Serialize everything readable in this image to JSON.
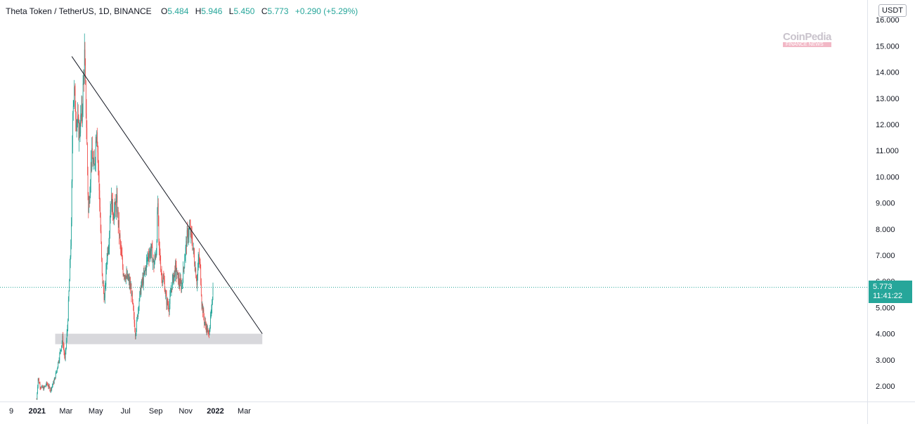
{
  "header": {
    "symbol": "Theta Token / TetherUS, 1D, BINANCE",
    "o_label": "O",
    "o_value": "5.484",
    "h_label": "H",
    "h_value": "5.946",
    "l_label": "L",
    "l_value": "5.450",
    "c_label": "C",
    "c_value": "5.773",
    "change": "+0.290 (+5.29%)"
  },
  "unit_badge": "USDT",
  "price_tag": {
    "price": "5.773",
    "countdown": "11:41:22"
  },
  "watermark": {
    "brand": "CoinPedia",
    "tagline": "FINANCE NEWS"
  },
  "colors": {
    "up": "#26a69a",
    "down": "#ef5350",
    "zone": "#d8d8dc",
    "trendline": "#131722",
    "last_price": "#26a69a"
  },
  "chart_data": {
    "type": "candlestick",
    "title": "Theta Token / TetherUS, 1D, BINANCE",
    "y_ticks": [
      "2.000",
      "3.000",
      "4.000",
      "5.000",
      "6.000",
      "7.000",
      "8.000",
      "9.000",
      "10.000",
      "11.000",
      "12.000",
      "13.000",
      "14.000",
      "15.000",
      "16.000"
    ],
    "ylim": [
      1.4,
      16.3
    ],
    "x_ticks": [
      {
        "label": "9",
        "date": "2020-11-09",
        "bold": false
      },
      {
        "label": "2021",
        "date": "2021-01-01",
        "bold": true
      },
      {
        "label": "Mar",
        "date": "2021-03-01",
        "bold": false
      },
      {
        "label": "May",
        "date": "2021-05-01",
        "bold": false
      },
      {
        "label": "Jul",
        "date": "2021-07-01",
        "bold": false
      },
      {
        "label": "Sep",
        "date": "2021-09-01",
        "bold": false
      },
      {
        "label": "Nov",
        "date": "2021-11-01",
        "bold": false
      },
      {
        "label": "2022",
        "date": "2022-01-01",
        "bold": true
      },
      {
        "label": "Mar",
        "date": "2022-03-01",
        "bold": false
      }
    ],
    "last_price": 5.773,
    "trendline": {
      "start": [
        "2021-03-13",
        14.6
      ],
      "end": [
        "2022-04-07",
        4.0
      ]
    },
    "support_zone": {
      "start": "2021-02-07",
      "end": "2022-04-07",
      "low": 3.6,
      "high": 4.0
    },
    "price_path": [
      [
        "2020-12-31",
        1.5
      ],
      [
        "2021-01-03",
        2.3
      ],
      [
        "2021-01-07",
        2.0
      ],
      [
        "2021-01-14",
        1.9
      ],
      [
        "2021-01-21",
        2.1
      ],
      [
        "2021-01-28",
        1.85
      ],
      [
        "2021-02-05",
        2.2
      ],
      [
        "2021-02-10",
        2.6
      ],
      [
        "2021-02-17",
        3.3
      ],
      [
        "2021-02-22",
        3.8
      ],
      [
        "2021-02-27",
        3.0
      ],
      [
        "2021-03-04",
        4.2
      ],
      [
        "2021-03-08",
        6.0
      ],
      [
        "2021-03-12",
        8.0
      ],
      [
        "2021-03-15",
        12.8
      ],
      [
        "2021-03-18",
        13.2
      ],
      [
        "2021-03-22",
        12.3
      ],
      [
        "2021-03-28",
        11.7
      ],
      [
        "2021-04-03",
        12.5
      ],
      [
        "2021-04-08",
        14.6
      ],
      [
        "2021-04-12",
        12.0
      ],
      [
        "2021-04-16",
        8.6
      ],
      [
        "2021-04-22",
        10.8
      ],
      [
        "2021-04-28",
        10.3
      ],
      [
        "2021-05-03",
        12.0
      ],
      [
        "2021-05-07",
        10.0
      ],
      [
        "2021-05-10",
        8.5
      ],
      [
        "2021-05-14",
        6.2
      ],
      [
        "2021-05-19",
        5.3
      ],
      [
        "2021-05-24",
        7.0
      ],
      [
        "2021-05-28",
        7.6
      ],
      [
        "2021-06-01",
        9.2
      ],
      [
        "2021-06-06",
        8.6
      ],
      [
        "2021-06-13",
        9.0
      ],
      [
        "2021-06-20",
        7.4
      ],
      [
        "2021-06-26",
        6.4
      ],
      [
        "2021-07-02",
        6.2
      ],
      [
        "2021-07-08",
        6.0
      ],
      [
        "2021-07-13",
        5.6
      ],
      [
        "2021-07-17",
        4.8
      ],
      [
        "2021-07-21",
        4.0
      ],
      [
        "2021-07-24",
        4.4
      ],
      [
        "2021-07-28",
        5.2
      ],
      [
        "2021-08-02",
        5.8
      ],
      [
        "2021-08-09",
        6.3
      ],
      [
        "2021-08-16",
        7.0
      ],
      [
        "2021-08-23",
        7.2
      ],
      [
        "2021-08-28",
        6.6
      ],
      [
        "2021-09-02",
        7.2
      ],
      [
        "2021-09-05",
        9.0
      ],
      [
        "2021-09-07",
        7.4
      ],
      [
        "2021-09-13",
        6.2
      ],
      [
        "2021-09-18",
        6.0
      ],
      [
        "2021-09-22",
        5.3
      ],
      [
        "2021-09-28",
        5.0
      ],
      [
        "2021-10-04",
        5.9
      ],
      [
        "2021-10-11",
        6.5
      ],
      [
        "2021-10-18",
        6.0
      ],
      [
        "2021-10-24",
        5.8
      ],
      [
        "2021-10-30",
        6.9
      ],
      [
        "2021-11-04",
        7.7
      ],
      [
        "2021-11-09",
        8.0
      ],
      [
        "2021-11-14",
        7.6
      ],
      [
        "2021-11-19",
        6.8
      ],
      [
        "2021-11-24",
        6.0
      ],
      [
        "2021-11-28",
        6.9
      ],
      [
        "2021-12-01",
        6.5
      ],
      [
        "2021-12-04",
        5.2
      ],
      [
        "2021-12-09",
        4.5
      ],
      [
        "2021-12-14",
        4.2
      ],
      [
        "2021-12-18",
        3.95
      ],
      [
        "2021-12-21",
        4.4
      ],
      [
        "2021-12-25",
        5.0
      ],
      [
        "2021-12-27",
        5.773
      ]
    ]
  }
}
